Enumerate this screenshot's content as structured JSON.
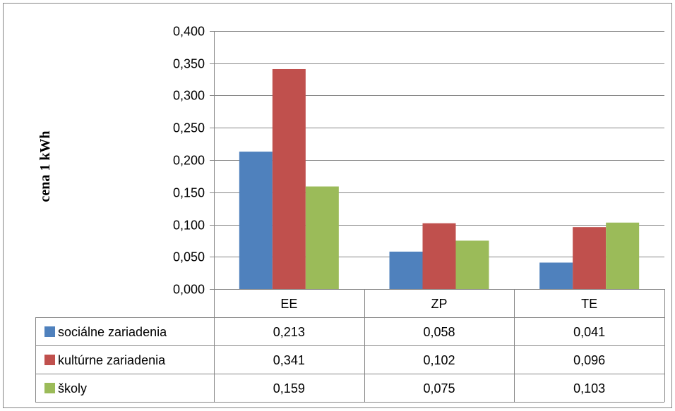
{
  "chart_data": {
    "type": "bar",
    "title": "",
    "xlabel": "",
    "ylabel": "cena 1 kWh",
    "categories": [
      "EE",
      "ZP",
      "TE"
    ],
    "ylim": [
      0,
      0.4
    ],
    "yticks": [
      "0,000",
      "0,050",
      "0,100",
      "0,150",
      "0,200",
      "0,250",
      "0,300",
      "0,350",
      "0,400"
    ],
    "grid": true,
    "legend": "data-table",
    "series": [
      {
        "name": "sociálne zariadenia",
        "color": "#4f81bd",
        "values": [
          0.213,
          0.058,
          0.041
        ],
        "labels": [
          "0,213",
          "0,058",
          "0,041"
        ]
      },
      {
        "name": "kultúrne zariadenia",
        "color": "#c0504d",
        "values": [
          0.341,
          0.102,
          0.096
        ],
        "labels": [
          "0,341",
          "0,102",
          "0,096"
        ]
      },
      {
        "name": "školy",
        "color": "#9bbb59",
        "values": [
          0.159,
          0.075,
          0.103
        ],
        "labels": [
          "0,159",
          "0,075",
          "0,103"
        ]
      }
    ]
  }
}
